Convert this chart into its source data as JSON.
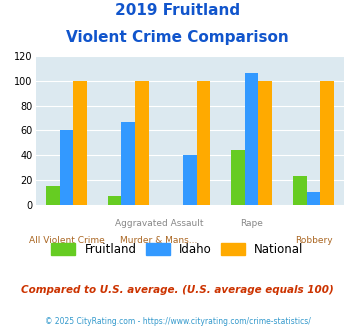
{
  "title_line1": "2019 Fruitland",
  "title_line2": "Violent Crime Comparison",
  "categories": [
    "All Violent Crime",
    "Aggravated Assault",
    "Murder & Mans...",
    "Rape",
    "Robbery"
  ],
  "series": {
    "Fruitland": [
      15,
      7,
      0,
      44,
      23
    ],
    "Idaho": [
      60,
      67,
      40,
      106,
      10
    ],
    "National": [
      100,
      100,
      100,
      100,
      100
    ]
  },
  "colors": {
    "Fruitland": "#66cc22",
    "Idaho": "#3399ff",
    "National": "#ffaa00"
  },
  "ylim": [
    0,
    120
  ],
  "yticks": [
    0,
    20,
    40,
    60,
    80,
    100,
    120
  ],
  "background_color": "#dce9f0",
  "title_color": "#1155cc",
  "top_row_labels": {
    "1": "Aggravated Assault",
    "2": "Rape"
  },
  "bot_row_labels": {
    "0": "All Violent Crime",
    "1": "Murder & Mans...",
    "3": "Robbery"
  },
  "top_label_color": "#888888",
  "bot_label_color": "#aa6622",
  "footer_text": "Compared to U.S. average. (U.S. average equals 100)",
  "credit_text": "© 2025 CityRating.com - https://www.cityrating.com/crime-statistics/",
  "footer_color": "#cc3300",
  "credit_color": "#3399cc"
}
